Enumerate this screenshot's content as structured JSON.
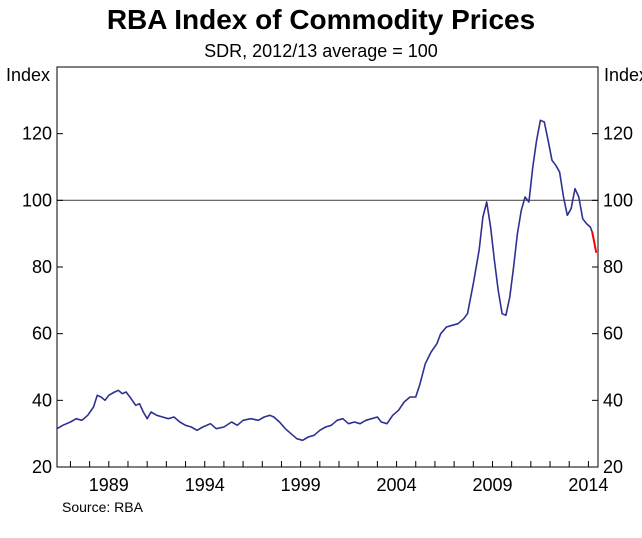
{
  "chart_data": {
    "type": "line",
    "title": "RBA Index of Commodity Prices",
    "subtitle": "SDR, 2012/13 average = 100",
    "ylabel_left": "Index",
    "ylabel_right": "Index",
    "source": "Source: RBA",
    "ylim": [
      20,
      140
    ],
    "yticks": [
      20,
      40,
      60,
      80,
      100,
      120
    ],
    "xlim": [
      1986.3,
      2014.5
    ],
    "xticks": [
      1989,
      1994,
      1999,
      2004,
      2009,
      2014
    ],
    "xtick_labels": [
      "1989",
      "1994",
      "1999",
      "2004",
      "2009",
      "2014"
    ],
    "reference_line": 100,
    "series": [
      {
        "name": "Index",
        "color": "#2e3192",
        "points": [
          [
            1986.3,
            31.5
          ],
          [
            1986.6,
            32.5
          ],
          [
            1987.0,
            33.5
          ],
          [
            1987.3,
            34.5
          ],
          [
            1987.6,
            34.0
          ],
          [
            1987.9,
            35.5
          ],
          [
            1988.2,
            38.0
          ],
          [
            1988.4,
            41.5
          ],
          [
            1988.6,
            41.0
          ],
          [
            1988.8,
            40.0
          ],
          [
            1989.0,
            41.5
          ],
          [
            1989.3,
            42.5
          ],
          [
            1989.5,
            43.0
          ],
          [
            1989.7,
            42.0
          ],
          [
            1989.9,
            42.5
          ],
          [
            1990.1,
            41.0
          ],
          [
            1990.4,
            38.5
          ],
          [
            1990.6,
            39.0
          ],
          [
            1990.8,
            36.5
          ],
          [
            1991.0,
            34.5
          ],
          [
            1991.2,
            36.5
          ],
          [
            1991.5,
            35.5
          ],
          [
            1991.8,
            35.0
          ],
          [
            1992.1,
            34.5
          ],
          [
            1992.4,
            35.0
          ],
          [
            1992.7,
            33.5
          ],
          [
            1993.0,
            32.5
          ],
          [
            1993.3,
            32.0
          ],
          [
            1993.6,
            31.0
          ],
          [
            1993.9,
            32.0
          ],
          [
            1994.3,
            33.0
          ],
          [
            1994.6,
            31.5
          ],
          [
            1995.0,
            32.0
          ],
          [
            1995.4,
            33.5
          ],
          [
            1995.7,
            32.5
          ],
          [
            1996.0,
            34.0
          ],
          [
            1996.4,
            34.5
          ],
          [
            1996.8,
            34.0
          ],
          [
            1997.1,
            35.0
          ],
          [
            1997.4,
            35.5
          ],
          [
            1997.6,
            35.0
          ],
          [
            1997.9,
            33.5
          ],
          [
            1998.2,
            31.5
          ],
          [
            1998.5,
            30.0
          ],
          [
            1998.8,
            28.5
          ],
          [
            1999.1,
            28.0
          ],
          [
            1999.4,
            29.0
          ],
          [
            1999.7,
            29.5
          ],
          [
            2000.0,
            31.0
          ],
          [
            2000.3,
            32.0
          ],
          [
            2000.6,
            32.5
          ],
          [
            2000.9,
            34.0
          ],
          [
            2001.2,
            34.5
          ],
          [
            2001.5,
            33.0
          ],
          [
            2001.8,
            33.5
          ],
          [
            2002.1,
            33.0
          ],
          [
            2002.4,
            34.0
          ],
          [
            2002.7,
            34.5
          ],
          [
            2003.0,
            35.0
          ],
          [
            2003.2,
            33.5
          ],
          [
            2003.5,
            33.0
          ],
          [
            2003.8,
            35.5
          ],
          [
            2004.1,
            37.0
          ],
          [
            2004.4,
            39.5
          ],
          [
            2004.7,
            41.0
          ],
          [
            2005.0,
            41.0
          ],
          [
            2005.2,
            44.5
          ],
          [
            2005.5,
            51.0
          ],
          [
            2005.8,
            54.5
          ],
          [
            2006.1,
            57.0
          ],
          [
            2006.3,
            60.0
          ],
          [
            2006.6,
            62.0
          ],
          [
            2006.9,
            62.5
          ],
          [
            2007.2,
            63.0
          ],
          [
            2007.5,
            64.5
          ],
          [
            2007.7,
            66.0
          ],
          [
            2008.0,
            75.0
          ],
          [
            2008.3,
            85.0
          ],
          [
            2008.5,
            95.0
          ],
          [
            2008.7,
            99.5
          ],
          [
            2008.9,
            92.0
          ],
          [
            2009.1,
            82.0
          ],
          [
            2009.3,
            73.0
          ],
          [
            2009.5,
            66.0
          ],
          [
            2009.7,
            65.5
          ],
          [
            2009.9,
            71.0
          ],
          [
            2010.1,
            80.0
          ],
          [
            2010.3,
            90.0
          ],
          [
            2010.5,
            97.0
          ],
          [
            2010.7,
            101.0
          ],
          [
            2010.9,
            99.5
          ],
          [
            2011.1,
            110.0
          ],
          [
            2011.3,
            118.0
          ],
          [
            2011.5,
            124.0
          ],
          [
            2011.7,
            123.5
          ],
          [
            2011.9,
            118.0
          ],
          [
            2012.1,
            112.0
          ],
          [
            2012.3,
            110.5
          ],
          [
            2012.5,
            108.5
          ],
          [
            2012.7,
            101.0
          ],
          [
            2012.9,
            95.5
          ],
          [
            2013.1,
            97.5
          ],
          [
            2013.3,
            103.5
          ],
          [
            2013.5,
            101.0
          ],
          [
            2013.7,
            94.5
          ],
          [
            2013.9,
            93.0
          ],
          [
            2014.1,
            92.0
          ],
          [
            2014.2,
            90.5
          ]
        ]
      },
      {
        "name": "Recent",
        "color": "#ff0000",
        "points": [
          [
            2014.2,
            90.5
          ],
          [
            2014.3,
            87.5
          ],
          [
            2014.4,
            84.5
          ]
        ]
      }
    ]
  }
}
